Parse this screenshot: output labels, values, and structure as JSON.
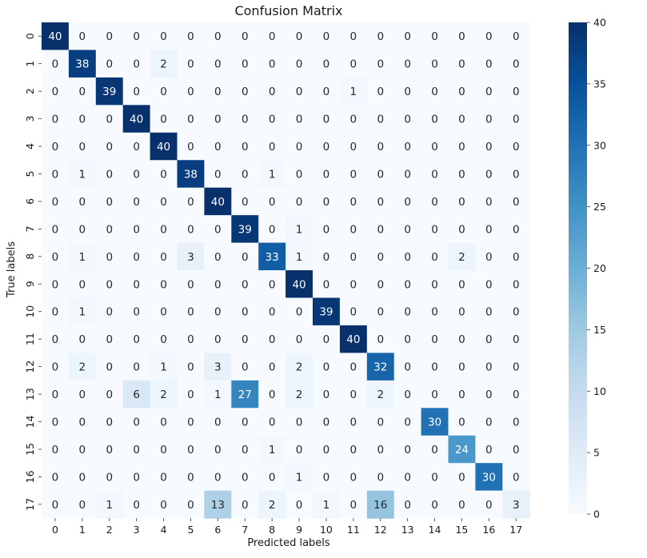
{
  "chart_data": {
    "type": "heatmap",
    "title": "Confusion Matrix",
    "xlabel": "Predicted labels",
    "ylabel": "True labels",
    "x_tick_labels": [
      "0",
      "1",
      "2",
      "3",
      "4",
      "5",
      "6",
      "7",
      "8",
      "9",
      "10",
      "11",
      "12",
      "13",
      "14",
      "15",
      "16",
      "17"
    ],
    "y_tick_labels": [
      "0",
      "1",
      "2",
      "3",
      "4",
      "5",
      "6",
      "7",
      "8",
      "9",
      "10",
      "11",
      "12",
      "13",
      "14",
      "15",
      "16",
      "17"
    ],
    "matrix": [
      [
        40,
        0,
        0,
        0,
        0,
        0,
        0,
        0,
        0,
        0,
        0,
        0,
        0,
        0,
        0,
        0,
        0,
        0
      ],
      [
        0,
        38,
        0,
        0,
        2,
        0,
        0,
        0,
        0,
        0,
        0,
        0,
        0,
        0,
        0,
        0,
        0,
        0
      ],
      [
        0,
        0,
        39,
        0,
        0,
        0,
        0,
        0,
        0,
        0,
        0,
        1,
        0,
        0,
        0,
        0,
        0,
        0
      ],
      [
        0,
        0,
        0,
        40,
        0,
        0,
        0,
        0,
        0,
        0,
        0,
        0,
        0,
        0,
        0,
        0,
        0,
        0
      ],
      [
        0,
        0,
        0,
        0,
        40,
        0,
        0,
        0,
        0,
        0,
        0,
        0,
        0,
        0,
        0,
        0,
        0,
        0
      ],
      [
        0,
        1,
        0,
        0,
        0,
        38,
        0,
        0,
        1,
        0,
        0,
        0,
        0,
        0,
        0,
        0,
        0,
        0
      ],
      [
        0,
        0,
        0,
        0,
        0,
        0,
        40,
        0,
        0,
        0,
        0,
        0,
        0,
        0,
        0,
        0,
        0,
        0
      ],
      [
        0,
        0,
        0,
        0,
        0,
        0,
        0,
        39,
        0,
        1,
        0,
        0,
        0,
        0,
        0,
        0,
        0,
        0
      ],
      [
        0,
        1,
        0,
        0,
        0,
        3,
        0,
        0,
        33,
        1,
        0,
        0,
        0,
        0,
        0,
        2,
        0,
        0
      ],
      [
        0,
        0,
        0,
        0,
        0,
        0,
        0,
        0,
        0,
        40,
        0,
        0,
        0,
        0,
        0,
        0,
        0,
        0
      ],
      [
        0,
        1,
        0,
        0,
        0,
        0,
        0,
        0,
        0,
        0,
        39,
        0,
        0,
        0,
        0,
        0,
        0,
        0
      ],
      [
        0,
        0,
        0,
        0,
        0,
        0,
        0,
        0,
        0,
        0,
        0,
        40,
        0,
        0,
        0,
        0,
        0,
        0
      ],
      [
        0,
        2,
        0,
        0,
        1,
        0,
        3,
        0,
        0,
        2,
        0,
        0,
        32,
        0,
        0,
        0,
        0,
        0
      ],
      [
        0,
        0,
        0,
        6,
        2,
        0,
        1,
        27,
        0,
        2,
        0,
        0,
        2,
        0,
        0,
        0,
        0,
        0
      ],
      [
        0,
        0,
        0,
        0,
        0,
        0,
        0,
        0,
        0,
        0,
        0,
        0,
        0,
        0,
        30,
        0,
        0,
        0
      ],
      [
        0,
        0,
        0,
        0,
        0,
        0,
        0,
        0,
        1,
        0,
        0,
        0,
        0,
        0,
        0,
        24,
        0,
        0
      ],
      [
        0,
        0,
        0,
        0,
        0,
        0,
        0,
        0,
        0,
        1,
        0,
        0,
        0,
        0,
        0,
        0,
        30,
        0
      ],
      [
        0,
        0,
        1,
        0,
        0,
        0,
        13,
        0,
        2,
        0,
        1,
        0,
        16,
        0,
        0,
        0,
        0,
        3
      ]
    ],
    "colorbar": {
      "min": 0,
      "max": 40,
      "ticks": [
        "0",
        "5",
        "10",
        "15",
        "20",
        "25",
        "30",
        "35",
        "40"
      ]
    },
    "colormap": "Blues",
    "grid": false
  }
}
